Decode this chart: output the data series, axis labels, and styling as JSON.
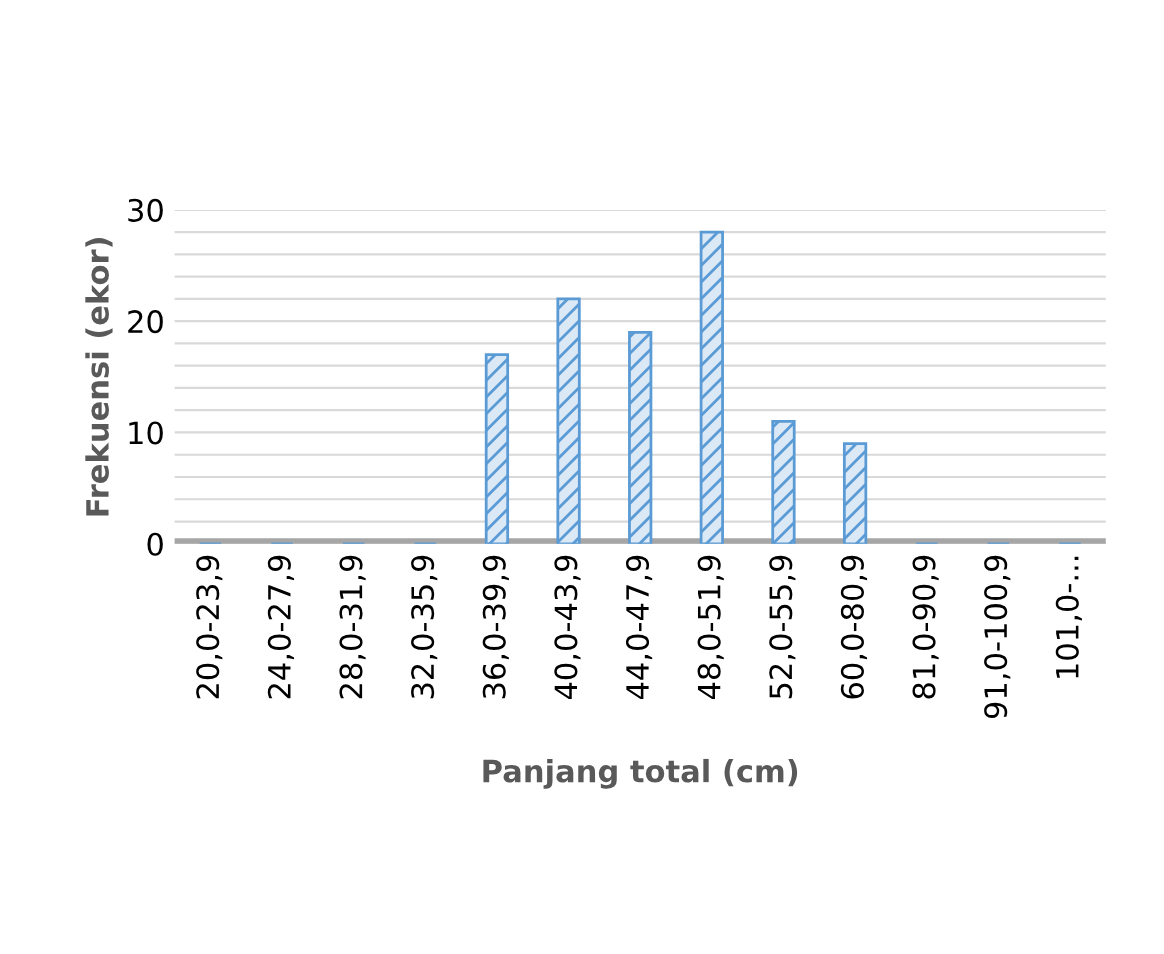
{
  "chart_data": {
    "type": "bar",
    "xlabel": "Panjang total (cm)",
    "ylabel": "Frekuensi (ekor)",
    "categories": [
      "20,0-23,9",
      "24,0-27,9",
      "28,0-31,9",
      "32,0-35,9",
      "36,0-39,9",
      "40,0-43,9",
      "44,0-47,9",
      "48,0-51,9",
      "52,0-55,9",
      "60,0-80,9",
      "81,0-90,9",
      "91,0-100,9",
      "101,0-..."
    ],
    "values": [
      0,
      0,
      0,
      0,
      17,
      22,
      19,
      28,
      11,
      9,
      0,
      0,
      0
    ],
    "color": "#5b9bd5",
    "ylim": [
      0,
      30
    ],
    "yticks": [
      0,
      {
        "value": 2,
        "label": null
      },
      {
        "value": 4,
        "label": null
      },
      {
        "value": 6,
        "label": null
      },
      {
        "value": 8,
        "label": null
      },
      10,
      {
        "value": 12,
        "label": null
      },
      {
        "value": 14,
        "label": null
      },
      {
        "value": 16,
        "label": null
      },
      {
        "value": 18,
        "label": null
      },
      20,
      {
        "value": 22,
        "label": null
      },
      {
        "value": 24,
        "label": null
      },
      {
        "value": 26,
        "label": null
      },
      {
        "value": 28,
        "label": null
      },
      30
    ],
    "grid": "y"
  }
}
